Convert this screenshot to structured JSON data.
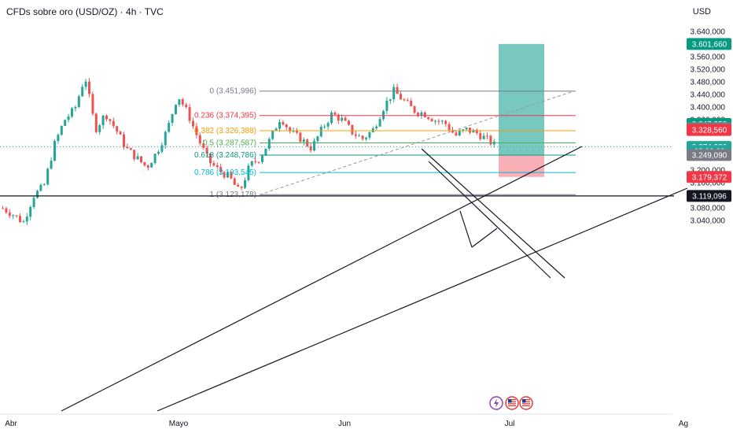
{
  "header": {
    "title": "CFDs sobre oro (USD/OZ) · 4h · TVC",
    "currency": "USD"
  },
  "colors": {
    "up": "#26a69a",
    "down": "#ef5350",
    "target_zone": "#26a69a",
    "stop_zone": "#f7a1a9"
  },
  "chart_data": {
    "type": "candlestick",
    "interval": "4h",
    "ylim": [
      3020,
      3680
    ],
    "x_ticks": [
      "Abr",
      "Mayo",
      "Jun",
      "Jul",
      "Ag"
    ],
    "y_ticks": [
      "3.040,000",
      "3.080,000",
      "3.120,000",
      "3.160,000",
      "3.200,000",
      "3.240,000",
      "3.280,000",
      "3.320,000",
      "3.360,000",
      "3.400,000",
      "3.440,000",
      "3.480,000",
      "3.520,000",
      "3.560,000",
      "3.600,000",
      "3.640,000"
    ],
    "price_path": [
      [
        "Abr",
        3080
      ],
      [
        "",
        3060
      ],
      [
        "",
        3035
      ],
      [
        "",
        3120
      ],
      [
        "",
        3150
      ],
      [
        "",
        3280
      ],
      [
        "",
        3360
      ],
      [
        "",
        3395
      ],
      [
        "",
        3500
      ],
      [
        "",
        3330
      ],
      [
        "",
        3380
      ],
      [
        "",
        3330
      ],
      [
        "",
        3270
      ],
      [
        "",
        3240
      ],
      [
        "",
        3210
      ],
      [
        "Mayo",
        3260
      ],
      [
        "",
        3330
      ],
      [
        "",
        3440
      ],
      [
        "",
        3380
      ],
      [
        "",
        3300
      ],
      [
        "",
        3230
      ],
      [
        "",
        3200
      ],
      [
        "",
        3180
      ],
      [
        "",
        3130
      ],
      [
        "",
        3215
      ],
      [
        "",
        3240
      ],
      [
        "",
        3300
      ],
      [
        "",
        3370
      ],
      [
        "",
        3320
      ],
      [
        "",
        3300
      ],
      [
        "",
        3270
      ],
      [
        "Jun",
        3330
      ],
      [
        "",
        3380
      ],
      [
        "",
        3360
      ],
      [
        "",
        3320
      ],
      [
        "",
        3300
      ],
      [
        "",
        3330
      ],
      [
        "",
        3400
      ],
      [
        "",
        3452
      ],
      [
        "",
        3420
      ],
      [
        "",
        3390
      ],
      [
        "",
        3380
      ],
      [
        "",
        3360
      ],
      [
        "",
        3350
      ],
      [
        "",
        3310
      ],
      [
        "",
        3330
      ],
      [
        "",
        3320
      ],
      [
        "",
        3300
      ],
      [
        "",
        3275
      ]
    ],
    "fibonacci": [
      {
        "label": "0 (3.451,996)",
        "value": 3451.996,
        "color": "#787b86"
      },
      {
        "label": "0.236 (3.374,395)",
        "value": 3374.395,
        "color": "#f23645"
      },
      {
        "label": "0.382 (3.326,388)",
        "value": 3326.388,
        "color": "#ff9800"
      },
      {
        "label": "0.5 (3.287,587)",
        "value": 3287.587,
        "color": "#4caf50"
      },
      {
        "label": "0.618 (3.248,786)",
        "value": 3248.786,
        "color": "#089981"
      },
      {
        "label": "0.786 (3.193,545)",
        "value": 3193.545,
        "color": "#00bcd4"
      },
      {
        "label": "1 (3.123,178)",
        "value": 3123.178,
        "color": "#787b86"
      }
    ],
    "position": {
      "target": 3601.66,
      "entry": 3249.09,
      "stop": 3179.372
    },
    "horizontal_line": 3119.096,
    "price_labels": [
      {
        "text": "3.601,660",
        "value": 3601.66,
        "bg": "#089981"
      },
      {
        "text": "3.347,358",
        "value": 3347.358,
        "bg": "#089981"
      },
      {
        "text": "3.334,051",
        "value": 3334.051,
        "bg": "#787b86"
      },
      {
        "text": "3.328,560",
        "value": 3328.56,
        "bg": "#f23645"
      },
      {
        "text": "3.274,830",
        "value": 3274.83,
        "bg": "#26a69a"
      },
      {
        "text": "02:06:30",
        "value": 3261.5,
        "bg": "#26a69a"
      },
      {
        "text": "3.249,090",
        "value": 3249.09,
        "bg": "#787b86"
      },
      {
        "text": "3.179,372",
        "value": 3179.372,
        "bg": "#f23645"
      },
      {
        "text": "3.119,096",
        "value": 3119.096,
        "bg": "#131722"
      }
    ]
  }
}
